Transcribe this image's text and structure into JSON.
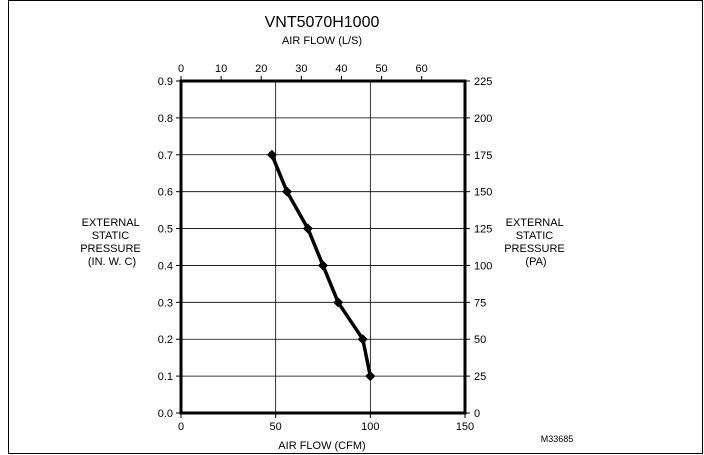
{
  "chart_data": {
    "type": "line",
    "title": "VNT5070H1000",
    "top_axis_label": "AIR FLOW (L/S)",
    "xlabel": "AIR FLOW (CFM)",
    "ylabel_left": [
      "EXTERNAL",
      "STATIC",
      "PRESSURE",
      "(IN. W. C)"
    ],
    "ylabel_right": [
      "EXTERNAL",
      "STATIC",
      "PRESSURE",
      "(PA)"
    ],
    "figure_id": "M33685",
    "xlim": [
      0,
      150
    ],
    "ylim": [
      0,
      0.9
    ],
    "top_xlim_ls": [
      0,
      70.8
    ],
    "right_ylim_pa": [
      0,
      225
    ],
    "x_ticks": [
      0,
      50,
      100,
      150
    ],
    "x_tick_labels": [
      "0",
      "50",
      "100",
      "150"
    ],
    "y_ticks": [
      0,
      0.1,
      0.2,
      0.3,
      0.4,
      0.5,
      0.6,
      0.7,
      0.8,
      0.9
    ],
    "y_tick_labels": [
      "0.0",
      "0.1",
      "0.2",
      "0.3",
      "0.4",
      "0.5",
      "0.6",
      "0.7",
      "0.8",
      "0.9"
    ],
    "top_ticks": [
      0,
      10,
      20,
      30,
      40,
      50,
      60
    ],
    "top_tick_labels": [
      "0",
      "10",
      "20",
      "30",
      "40",
      "50",
      "60"
    ],
    "right_ticks": [
      0,
      25,
      50,
      75,
      100,
      125,
      150,
      175,
      200,
      225
    ],
    "right_tick_labels": [
      "0",
      "25",
      "50",
      "75",
      "100",
      "125",
      "150",
      "175",
      "200",
      "225"
    ],
    "grid": "vertical",
    "line_color": "#000000",
    "series": [
      {
        "x": [
          48,
          56,
          67,
          75,
          83,
          96,
          100
        ],
        "y": [
          0.7,
          0.6,
          0.5,
          0.4,
          0.3,
          0.2,
          0.1
        ]
      }
    ]
  }
}
